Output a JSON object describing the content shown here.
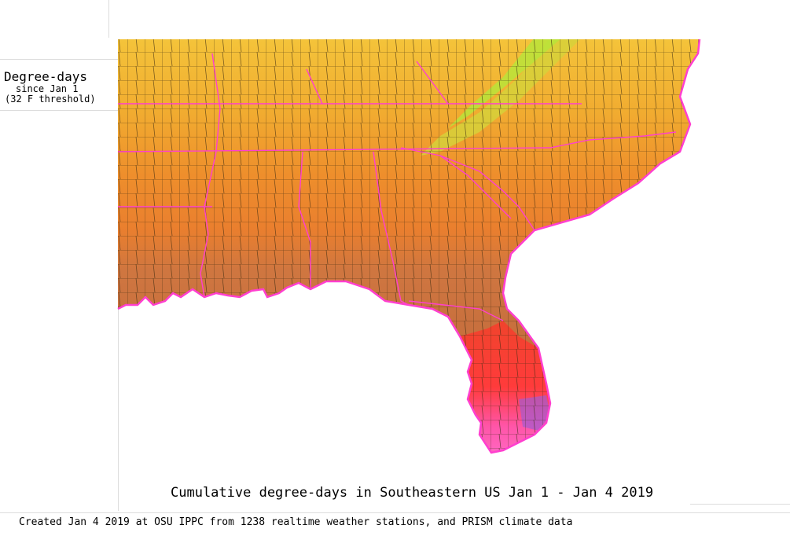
{
  "legend": {
    "title": "Degree-days",
    "since": "since Jan 1",
    "threshold": "(32 F threshold)"
  },
  "map": {
    "region": "Southeastern US",
    "colors": {
      "north_yellow": "#f2b632",
      "mid_orange": "#ef8a2e",
      "south_brown": "#c8733f",
      "florida_red": "#ff3b3b",
      "florida_pink": "#ff55a8",
      "florida_purple": "#a35bd0",
      "mountain_green": "#b8e43a",
      "state_border": "#ff3fcf",
      "county_line": "#3a2a10"
    }
  },
  "caption": "Cumulative degree-days in Southeastern US Jan 1 - Jan 4 2019",
  "credit": "Created Jan 4 2019 at OSU IPPC from 1238 realtime weather stations, and PRISM climate data"
}
